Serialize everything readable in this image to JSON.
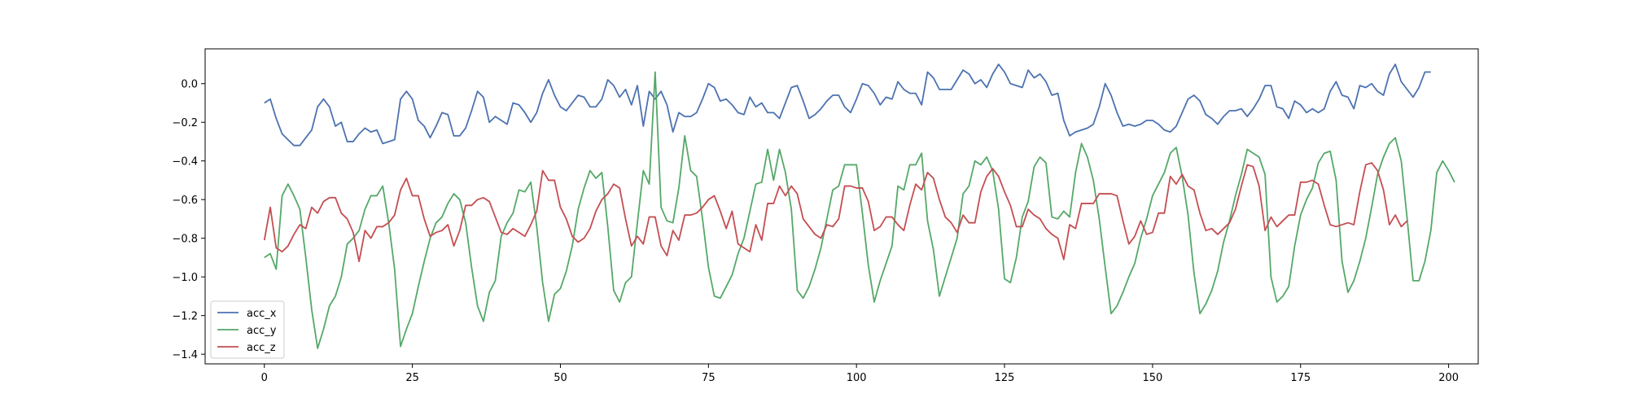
{
  "chart_data": {
    "type": "line",
    "title": "",
    "xlabel": "",
    "ylabel": "",
    "xlim": [
      -10,
      205
    ],
    "ylim": [
      -1.45,
      0.18
    ],
    "x_ticks": [
      0,
      25,
      50,
      75,
      100,
      125,
      150,
      175,
      200
    ],
    "y_ticks": [
      -1.4,
      -1.2,
      -1.0,
      -0.8,
      -0.6,
      -0.4,
      -0.2,
      0.0
    ],
    "x_tick_labels": [
      "0",
      "25",
      "50",
      "75",
      "100",
      "125",
      "150",
      "175",
      "200"
    ],
    "y_tick_labels": [
      "−1.4",
      "−1.2",
      "−1.0",
      "−0.8",
      "−0.6",
      "−0.4",
      "−0.2",
      "0.0"
    ],
    "grid": false,
    "legend_position": "lower-left",
    "x_start": 0,
    "x_step": 1,
    "series": [
      {
        "name": "acc_x",
        "color": "#4c72b0",
        "values": [
          -0.1,
          -0.08,
          -0.18,
          -0.26,
          -0.29,
          -0.32,
          -0.32,
          -0.28,
          -0.24,
          -0.12,
          -0.08,
          -0.12,
          -0.22,
          -0.2,
          -0.3,
          -0.3,
          -0.26,
          -0.23,
          -0.25,
          -0.24,
          -0.31,
          -0.3,
          -0.29,
          -0.08,
          -0.04,
          -0.08,
          -0.19,
          -0.22,
          -0.28,
          -0.22,
          -0.15,
          -0.16,
          -0.27,
          -0.27,
          -0.23,
          -0.14,
          -0.04,
          -0.07,
          -0.2,
          -0.17,
          -0.19,
          -0.21,
          -0.1,
          -0.11,
          -0.15,
          -0.2,
          -0.15,
          -0.05,
          0.02,
          -0.06,
          -0.12,
          -0.14,
          -0.1,
          -0.06,
          -0.07,
          -0.12,
          -0.12,
          -0.08,
          0.02,
          -0.01,
          -0.07,
          -0.03,
          -0.11,
          -0.01,
          -0.22,
          -0.04,
          -0.08,
          -0.04,
          -0.11,
          -0.25,
          -0.15,
          -0.17,
          -0.17,
          -0.15,
          -0.08,
          0.0,
          -0.02,
          -0.09,
          -0.08,
          -0.11,
          -0.15,
          -0.16,
          -0.07,
          -0.12,
          -0.1,
          -0.15,
          -0.15,
          -0.18,
          -0.1,
          -0.02,
          -0.01,
          -0.09,
          -0.18,
          -0.16,
          -0.13,
          -0.09,
          -0.06,
          -0.06,
          -0.12,
          -0.15,
          -0.08,
          0.0,
          -0.01,
          -0.05,
          -0.11,
          -0.07,
          -0.08,
          0.01,
          -0.03,
          -0.05,
          -0.05,
          -0.11,
          0.06,
          0.03,
          -0.03,
          -0.03,
          -0.03,
          0.02,
          0.07,
          0.05,
          0.0,
          0.02,
          -0.02,
          0.05,
          0.1,
          0.06,
          0.0,
          -0.01,
          -0.02,
          0.07,
          0.03,
          0.05,
          0.01,
          -0.06,
          -0.05,
          -0.19,
          -0.27,
          -0.25,
          -0.24,
          -0.23,
          -0.21,
          -0.12,
          0.0,
          -0.06,
          -0.15,
          -0.22,
          -0.21,
          -0.22,
          -0.21,
          -0.19,
          -0.19,
          -0.21,
          -0.24,
          -0.25,
          -0.22,
          -0.15,
          -0.08,
          -0.06,
          -0.09,
          -0.16,
          -0.18,
          -0.21,
          -0.17,
          -0.14,
          -0.14,
          -0.13,
          -0.17,
          -0.13,
          -0.08,
          -0.01,
          -0.01,
          -0.12,
          -0.13,
          -0.18,
          -0.09,
          -0.11,
          -0.15,
          -0.13,
          -0.15,
          -0.13,
          -0.04,
          0.01,
          -0.06,
          -0.07,
          -0.13,
          -0.01,
          -0.02,
          0.0,
          -0.04,
          -0.06,
          0.05,
          0.1,
          0.01,
          -0.03,
          -0.07,
          -0.02,
          0.06,
          0.06
        ]
      },
      {
        "name": "acc_y",
        "color": "#55a868",
        "values": [
          -0.9,
          -0.88,
          -0.96,
          -0.58,
          -0.52,
          -0.58,
          -0.65,
          -0.9,
          -1.17,
          -1.37,
          -1.27,
          -1.15,
          -1.1,
          -1.0,
          -0.83,
          -0.8,
          -0.76,
          -0.65,
          -0.58,
          -0.58,
          -0.53,
          -0.72,
          -0.96,
          -1.36,
          -1.27,
          -1.19,
          -1.05,
          -0.92,
          -0.8,
          -0.72,
          -0.69,
          -0.62,
          -0.57,
          -0.6,
          -0.72,
          -0.95,
          -1.15,
          -1.23,
          -1.08,
          -1.02,
          -0.79,
          -0.72,
          -0.67,
          -0.55,
          -0.56,
          -0.51,
          -0.74,
          -1.03,
          -1.23,
          -1.09,
          -1.06,
          -0.97,
          -0.84,
          -0.65,
          -0.54,
          -0.45,
          -0.49,
          -0.46,
          -0.74,
          -1.07,
          -1.13,
          -1.03,
          -1.0,
          -0.72,
          -0.45,
          -0.52,
          0.06,
          -0.64,
          -0.71,
          -0.72,
          -0.54,
          -0.27,
          -0.45,
          -0.48,
          -0.7,
          -0.95,
          -1.1,
          -1.11,
          -1.05,
          -0.99,
          -0.88,
          -0.8,
          -0.66,
          -0.52,
          -0.51,
          -0.34,
          -0.5,
          -0.34,
          -0.46,
          -0.65,
          -1.07,
          -1.11,
          -1.05,
          -0.96,
          -0.85,
          -0.7,
          -0.55,
          -0.53,
          -0.42,
          -0.42,
          -0.42,
          -0.67,
          -0.94,
          -1.13,
          -1.02,
          -0.93,
          -0.84,
          -0.53,
          -0.55,
          -0.42,
          -0.42,
          -0.36,
          -0.71,
          -0.86,
          -1.1,
          -1.0,
          -0.9,
          -0.8,
          -0.57,
          -0.53,
          -0.4,
          -0.42,
          -0.38,
          -0.45,
          -0.65,
          -1.01,
          -1.03,
          -0.9,
          -0.69,
          -0.61,
          -0.43,
          -0.38,
          -0.41,
          -0.69,
          -0.7,
          -0.66,
          -0.69,
          -0.46,
          -0.31,
          -0.38,
          -0.5,
          -0.7,
          -0.95,
          -1.19,
          -1.15,
          -1.08,
          -1.0,
          -0.93,
          -0.8,
          -0.7,
          -0.58,
          -0.52,
          -0.46,
          -0.36,
          -0.33,
          -0.48,
          -0.68,
          -0.98,
          -1.19,
          -1.14,
          -1.07,
          -0.97,
          -0.82,
          -0.71,
          -0.58,
          -0.47,
          -0.34,
          -0.36,
          -0.38,
          -0.47,
          -1.0,
          -1.13,
          -1.1,
          -1.05,
          -0.84,
          -0.68,
          -0.6,
          -0.54,
          -0.41,
          -0.36,
          -0.35,
          -0.5,
          -0.92,
          -1.08,
          -1.02,
          -0.92,
          -0.8,
          -0.64,
          -0.47,
          -0.38,
          -0.31,
          -0.28,
          -0.4,
          -0.7,
          -1.02,
          -1.02,
          -0.92,
          -0.76,
          -0.46,
          -0.4,
          -0.45,
          -0.51
        ]
      },
      {
        "name": "acc_z",
        "color": "#c44e52",
        "values": [
          -0.81,
          -0.64,
          -0.85,
          -0.87,
          -0.84,
          -0.78,
          -0.73,
          -0.75,
          -0.64,
          -0.67,
          -0.61,
          -0.59,
          -0.59,
          -0.67,
          -0.7,
          -0.77,
          -0.92,
          -0.76,
          -0.8,
          -0.74,
          -0.74,
          -0.72,
          -0.68,
          -0.55,
          -0.49,
          -0.58,
          -0.58,
          -0.7,
          -0.79,
          -0.77,
          -0.76,
          -0.73,
          -0.84,
          -0.76,
          -0.63,
          -0.63,
          -0.6,
          -0.59,
          -0.61,
          -0.69,
          -0.77,
          -0.78,
          -0.75,
          -0.77,
          -0.79,
          -0.73,
          -0.66,
          -0.45,
          -0.5,
          -0.5,
          -0.64,
          -0.7,
          -0.79,
          -0.82,
          -0.8,
          -0.75,
          -0.66,
          -0.6,
          -0.57,
          -0.52,
          -0.54,
          -0.7,
          -0.84,
          -0.79,
          -0.83,
          -0.69,
          -0.69,
          -0.84,
          -0.89,
          -0.76,
          -0.81,
          -0.68,
          -0.68,
          -0.67,
          -0.64,
          -0.6,
          -0.58,
          -0.66,
          -0.75,
          -0.66,
          -0.83,
          -0.85,
          -0.87,
          -0.73,
          -0.81,
          -0.62,
          -0.62,
          -0.53,
          -0.58,
          -0.53,
          -0.57,
          -0.7,
          -0.74,
          -0.78,
          -0.8,
          -0.73,
          -0.74,
          -0.7,
          -0.53,
          -0.53,
          -0.54,
          -0.54,
          -0.61,
          -0.76,
          -0.74,
          -0.69,
          -0.69,
          -0.73,
          -0.76,
          -0.63,
          -0.52,
          -0.55,
          -0.46,
          -0.49,
          -0.6,
          -0.69,
          -0.72,
          -0.77,
          -0.68,
          -0.72,
          -0.72,
          -0.56,
          -0.48,
          -0.44,
          -0.48,
          -0.56,
          -0.63,
          -0.74,
          -0.74,
          -0.65,
          -0.68,
          -0.7,
          -0.75,
          -0.78,
          -0.8,
          -0.91,
          -0.73,
          -0.75,
          -0.62,
          -0.62,
          -0.62,
          -0.57,
          -0.57,
          -0.57,
          -0.58,
          -0.71,
          -0.83,
          -0.79,
          -0.71,
          -0.78,
          -0.77,
          -0.67,
          -0.67,
          -0.48,
          -0.52,
          -0.47,
          -0.53,
          -0.55,
          -0.67,
          -0.76,
          -0.75,
          -0.78,
          -0.75,
          -0.72,
          -0.65,
          -0.53,
          -0.42,
          -0.43,
          -0.53,
          -0.76,
          -0.69,
          -0.74,
          -0.71,
          -0.68,
          -0.68,
          -0.51,
          -0.51,
          -0.5,
          -0.52,
          -0.63,
          -0.73,
          -0.74,
          -0.73,
          -0.72,
          -0.73,
          -0.56,
          -0.42,
          -0.41,
          -0.45,
          -0.55,
          -0.73,
          -0.68,
          -0.74,
          -0.71
        ]
      }
    ]
  }
}
